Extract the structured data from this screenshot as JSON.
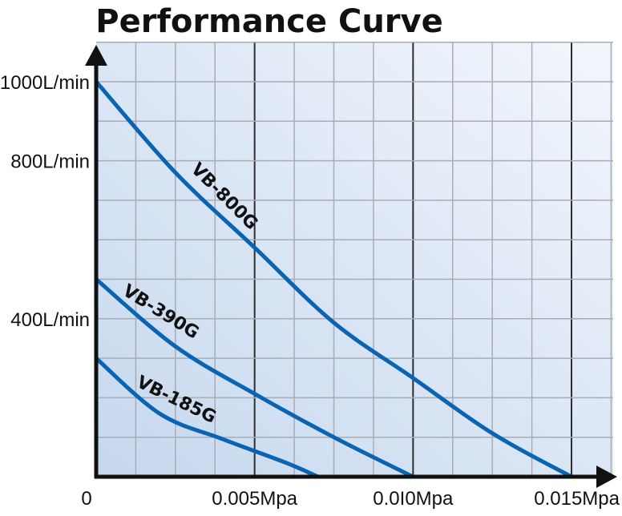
{
  "chart_data": {
    "type": "line",
    "title": "Performance Curve",
    "xlim": [
      0,
      0.015
    ],
    "ylim": [
      0,
      1000
    ],
    "grid": true,
    "x_ticks": [
      {
        "value": 0,
        "label": "0"
      },
      {
        "value": 0.005,
        "label": "0.005Mpa"
      },
      {
        "value": 0.01,
        "label": "0.0I0Mpa"
      },
      {
        "value": 0.015,
        "label": "0.015Mpa"
      }
    ],
    "y_ticks": [
      {
        "value": 1000,
        "label": "1000L/min"
      },
      {
        "value": 800,
        "label": "800L/min"
      },
      {
        "value": 400,
        "label": "400L/min"
      }
    ],
    "series": [
      {
        "name": "VB-800G",
        "points": [
          [
            0,
            1000
          ],
          [
            0.0025,
            770
          ],
          [
            0.005,
            580
          ],
          [
            0.0075,
            390
          ],
          [
            0.01,
            250
          ],
          [
            0.0125,
            110
          ],
          [
            0.015,
            0
          ]
        ]
      },
      {
        "name": "VB-390G",
        "points": [
          [
            0,
            500
          ],
          [
            0.0025,
            330
          ],
          [
            0.005,
            210
          ],
          [
            0.0075,
            100
          ],
          [
            0.01,
            0
          ]
        ]
      },
      {
        "name": "VB-185G",
        "points": [
          [
            0,
            300
          ],
          [
            0.002,
            160
          ],
          [
            0.004,
            95
          ],
          [
            0.006,
            35
          ],
          [
            0.007,
            0
          ]
        ]
      }
    ],
    "colors": {
      "curve": "#0a64b4",
      "grid_minor": "#a9acb4",
      "grid_major": "#2e2e2e",
      "axis": "#111111"
    }
  }
}
